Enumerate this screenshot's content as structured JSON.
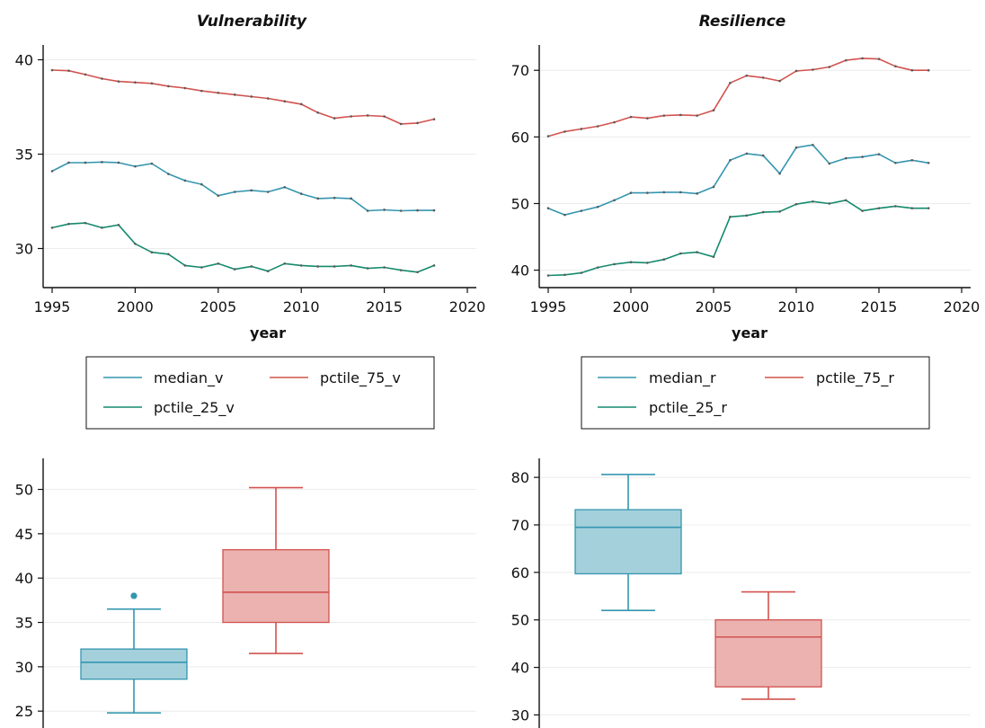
{
  "colors": {
    "median": "#3496b0",
    "p75": "#d2534f",
    "p25": "#148a6e",
    "grid": "#ececec",
    "axis": "#111111"
  },
  "chart_data": [
    {
      "type": "line",
      "title": "Vulnerability",
      "xlabel": "year",
      "ylabel": "",
      "xlim": [
        1995,
        2020
      ],
      "ylim": [
        28.5,
        40.5
      ],
      "xticks": [
        1995,
        2000,
        2005,
        2010,
        2015,
        2020
      ],
      "yticks": [
        30,
        35,
        40
      ],
      "grid": "horizontal",
      "legend_position": "bottom",
      "x": [
        1995,
        1996,
        1997,
        1998,
        1999,
        2000,
        2001,
        2002,
        2003,
        2004,
        2005,
        2006,
        2007,
        2008,
        2009,
        2010,
        2011,
        2012,
        2013,
        2014,
        2015,
        2016,
        2017,
        2018
      ],
      "series": [
        {
          "name": "median_v",
          "color_key": "median",
          "values": [
            34.1,
            34.55,
            34.55,
            34.58,
            34.55,
            34.35,
            34.5,
            33.95,
            33.6,
            33.4,
            32.8,
            33.0,
            33.08,
            33.0,
            33.25,
            32.9,
            32.65,
            32.68,
            32.65,
            32.0,
            32.05,
            32.0,
            32.02,
            32.02
          ]
        },
        {
          "name": "pctile_75_v",
          "color_key": "p75",
          "values": [
            39.45,
            39.42,
            39.22,
            39.0,
            38.85,
            38.8,
            38.75,
            38.6,
            38.5,
            38.35,
            38.25,
            38.15,
            38.05,
            37.95,
            37.8,
            37.65,
            37.2,
            36.9,
            37.0,
            37.05,
            37.0,
            36.6,
            36.65,
            36.85
          ]
        },
        {
          "name": "pctile_25_v",
          "color_key": "p25",
          "values": [
            31.1,
            31.3,
            31.35,
            31.1,
            31.25,
            30.25,
            29.8,
            29.7,
            29.1,
            29.0,
            29.2,
            28.9,
            29.05,
            28.8,
            29.2,
            29.1,
            29.05,
            29.05,
            29.1,
            28.95,
            29.0,
            28.85,
            28.75,
            29.1
          ]
        }
      ]
    },
    {
      "type": "line",
      "title": "Resilience",
      "xlabel": "year",
      "ylabel": "",
      "xlim": [
        1995,
        2020
      ],
      "ylim": [
        39,
        73
      ],
      "xticks": [
        1995,
        2000,
        2005,
        2010,
        2015,
        2020
      ],
      "yticks": [
        40,
        50,
        60,
        70
      ],
      "grid": "horizontal",
      "legend_position": "bottom",
      "x": [
        1995,
        1996,
        1997,
        1998,
        1999,
        2000,
        2001,
        2002,
        2003,
        2004,
        2005,
        2006,
        2007,
        2008,
        2009,
        2010,
        2011,
        2012,
        2013,
        2014,
        2015,
        2016,
        2017,
        2018
      ],
      "series": [
        {
          "name": "median_r",
          "color_key": "median",
          "values": [
            49.3,
            48.3,
            48.9,
            49.5,
            50.5,
            51.6,
            51.6,
            51.7,
            51.7,
            51.5,
            52.5,
            56.5,
            57.5,
            57.2,
            54.5,
            58.4,
            58.8,
            56.0,
            56.8,
            57.0,
            57.4,
            56.1,
            56.5,
            56.1
          ]
        },
        {
          "name": "pctile_75_r",
          "color_key": "p75",
          "values": [
            60.1,
            60.8,
            61.2,
            61.6,
            62.2,
            63.0,
            62.8,
            63.2,
            63.3,
            63.2,
            64.0,
            68.1,
            69.2,
            68.9,
            68.4,
            69.9,
            70.1,
            70.5,
            71.5,
            71.8,
            71.7,
            70.6,
            70.0,
            70.0
          ]
        },
        {
          "name": "pctile_25_r",
          "color_key": "p25",
          "values": [
            39.2,
            39.3,
            39.6,
            40.4,
            40.9,
            41.2,
            41.1,
            41.6,
            42.5,
            42.7,
            42.0,
            48.0,
            48.2,
            48.7,
            48.8,
            49.9,
            50.3,
            50.0,
            50.5,
            48.9,
            49.3,
            49.6,
            49.3,
            49.3
          ]
        }
      ]
    },
    {
      "type": "box",
      "title": "",
      "ylim": [
        23.5,
        53.5
      ],
      "yticks": [
        25,
        30,
        35,
        40,
        45,
        50
      ],
      "grid": "horizontal",
      "boxes": [
        {
          "color_key": "median",
          "min": 24.8,
          "q1": 28.6,
          "median": 30.5,
          "q3": 32.0,
          "max": 36.5,
          "outliers": [
            38.0
          ]
        },
        {
          "color_key": "p75",
          "min": 31.5,
          "q1": 35.0,
          "median": 38.4,
          "q3": 43.2,
          "max": 50.2,
          "outliers": []
        }
      ]
    },
    {
      "type": "box",
      "title": "",
      "ylim": [
        28,
        84
      ],
      "yticks": [
        30,
        40,
        50,
        60,
        70,
        80
      ],
      "grid": "horizontal",
      "boxes": [
        {
          "color_key": "median",
          "min": 52.0,
          "q1": 59.7,
          "median": 69.5,
          "q3": 73.2,
          "max": 80.6,
          "outliers": []
        },
        {
          "color_key": "p75",
          "min": 33.3,
          "q1": 35.9,
          "median": 46.4,
          "q3": 50.0,
          "max": 55.9,
          "outliers": []
        }
      ]
    }
  ]
}
